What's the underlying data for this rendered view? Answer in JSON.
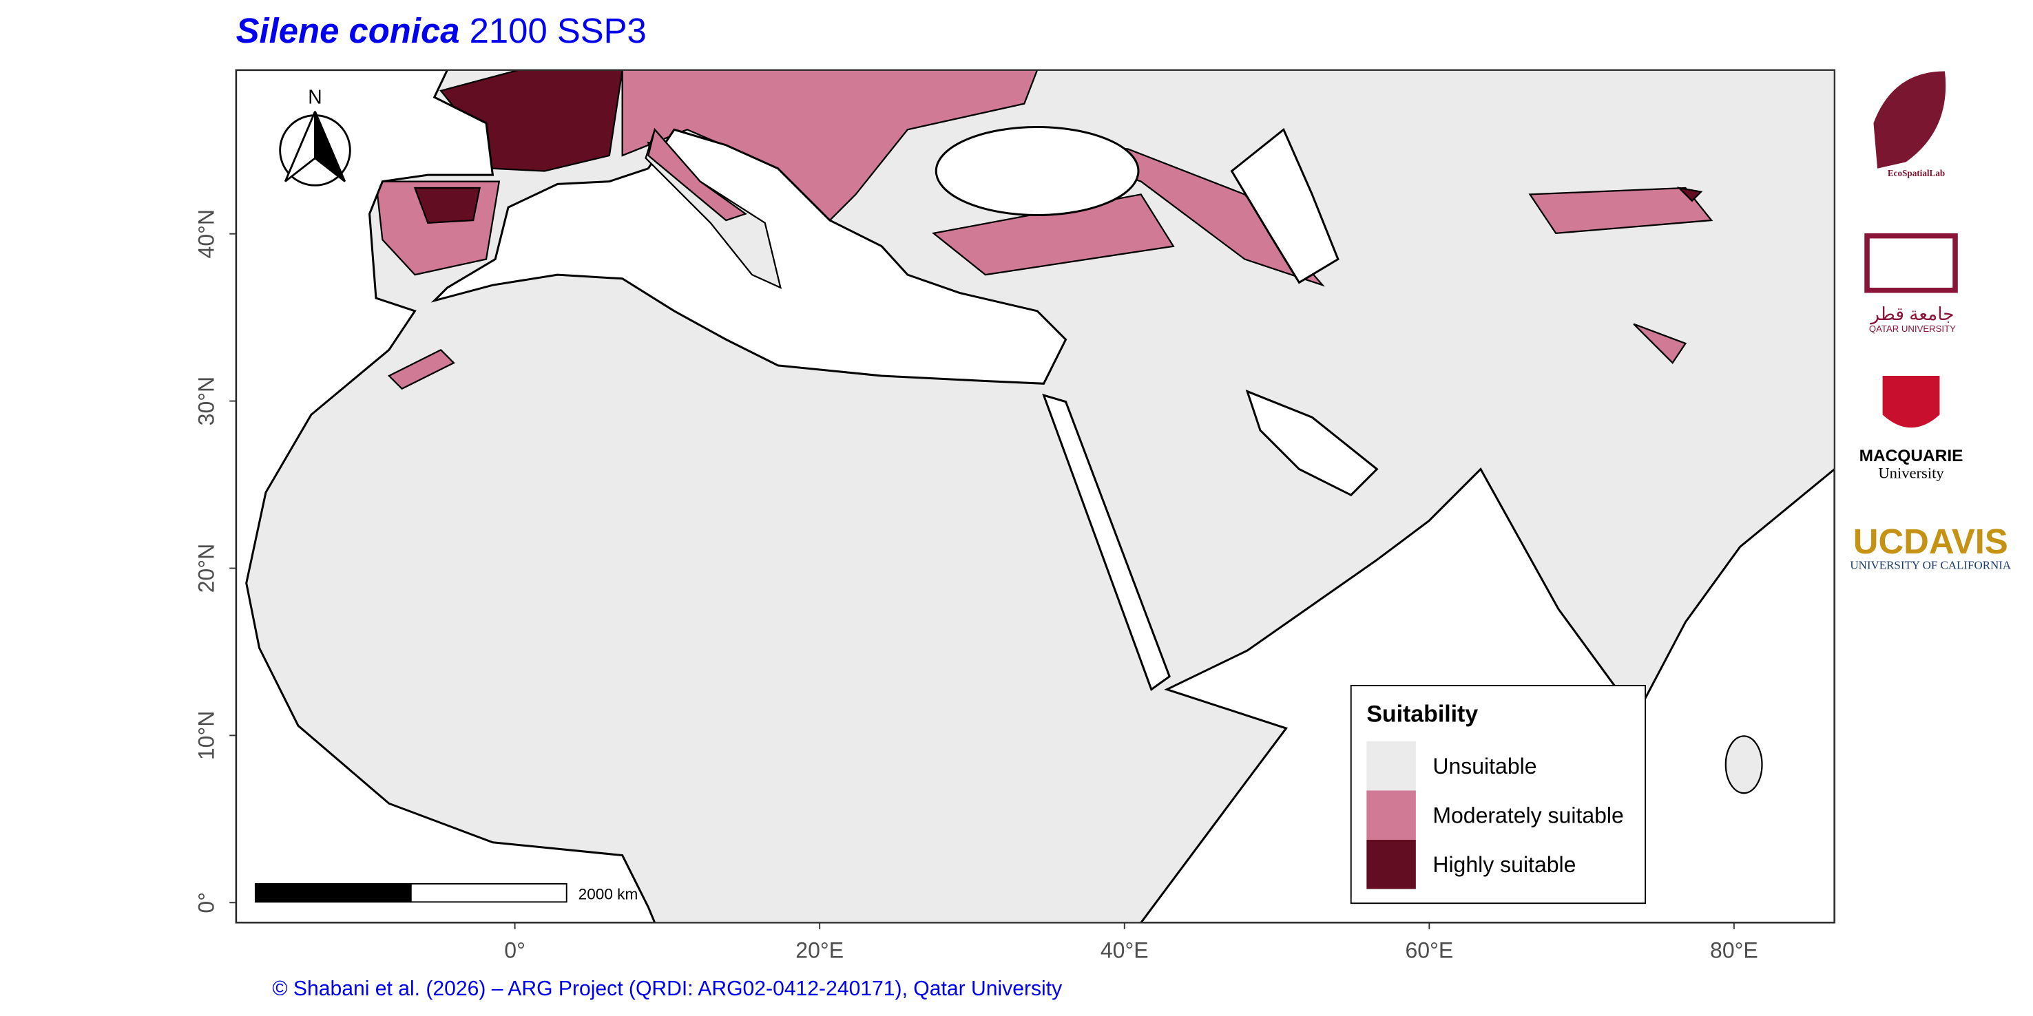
{
  "title": {
    "species": "Silene conica",
    "scenario": "2100 SSP3"
  },
  "map": {
    "xlim": [
      -18.3,
      86.6
    ],
    "ylim": [
      -1.2,
      49.8
    ],
    "xticks": [
      {
        "value": 0,
        "label": "0°"
      },
      {
        "value": 20,
        "label": "20°E"
      },
      {
        "value": 40,
        "label": "40°E"
      },
      {
        "value": 60,
        "label": "60°E"
      },
      {
        "value": 80,
        "label": "80°E"
      }
    ],
    "yticks": [
      {
        "value": 0,
        "label": "0°"
      },
      {
        "value": 10,
        "label": "10°N"
      },
      {
        "value": 20,
        "label": "20°N"
      },
      {
        "value": 30,
        "label": "30°N"
      },
      {
        "value": 40,
        "label": "40°N"
      }
    ],
    "north_label": "N",
    "scale_bar_label": "2000 km"
  },
  "legend": {
    "title": "Suitability",
    "items": [
      {
        "label": "Unsuitable",
        "color": "#ebebeb"
      },
      {
        "label": "Moderately suitable",
        "color": "#d07a96"
      },
      {
        "label": "Highly suitable",
        "color": "#620d22"
      }
    ]
  },
  "credit": "© Shabani et al. (2026) – ARG Project (QRDI: ARG02-0412-240171), Qatar University",
  "logos": [
    "EcoSpatialLab",
    "جامعة قطر",
    "QATAR UNIVERSITY",
    "MACQUARIE",
    "University",
    "UCDAVIS",
    "UNIVERSITY OF CALIFORNIA"
  ]
}
